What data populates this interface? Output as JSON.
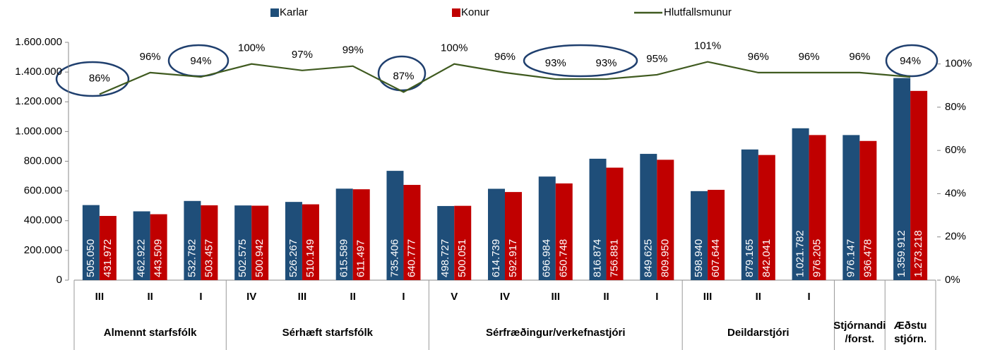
{
  "chart_data": {
    "type": "bar",
    "categories": [
      "III",
      "II",
      "I",
      "IV",
      "III",
      "II",
      "I",
      "V",
      "IV",
      "III",
      "II",
      "I",
      "III",
      "II",
      "I",
      null,
      null
    ],
    "groups": [
      {
        "name": "Almennt starfsfólk",
        "count": 3
      },
      {
        "name": "Sérhæft starfsfólk",
        "count": 4
      },
      {
        "name": "Sérfræðingur/verkefnastjóri",
        "count": 5
      },
      {
        "name": "Deildarstjóri",
        "count": 3
      },
      {
        "name": "Stjórnandi /forst.",
        "count": 1
      },
      {
        "name": "Æðstu stjórn.",
        "count": 1
      }
    ],
    "series": [
      {
        "name": "Karlar",
        "color": "#1f4e79",
        "type": "bar",
        "values": [
          505050,
          462922,
          532782,
          502575,
          526267,
          615589,
          735406,
          498727,
          614739,
          696984,
          816874,
          849625,
          598940,
          879165,
          1021782,
          976147,
          1359912
        ],
        "value_labels": [
          "505.050",
          "462.922",
          "532.782",
          "502.575",
          "526.267",
          "615.589",
          "735.406",
          "498.727",
          "614.739",
          "696.984",
          "816.874",
          "849.625",
          "598.940",
          "879.165",
          "1.021.782",
          "976.147",
          "1.359.912"
        ]
      },
      {
        "name": "Konur",
        "color": "#c00000",
        "type": "bar",
        "values": [
          431972,
          443509,
          503457,
          500942,
          510149,
          611497,
          640777,
          500051,
          592917,
          650748,
          756881,
          809950,
          607644,
          842041,
          976205,
          936478,
          1273218
        ],
        "value_labels": [
          "431.972",
          "443.509",
          "503.457",
          "500.942",
          "510.149",
          "611.497",
          "640.777",
          "500.051",
          "592.917",
          "650.748",
          "756.881",
          "809.950",
          "607.644",
          "842.041",
          "976.205",
          "936.478",
          "1.273.218"
        ]
      },
      {
        "name": "Hlutfallsmunur",
        "color": "#3f5a1f",
        "type": "line",
        "axis": "y2",
        "values": [
          86,
          96,
          94,
          100,
          97,
          99,
          87,
          100,
          96,
          93,
          93,
          95,
          101,
          96,
          96,
          96,
          94
        ],
        "value_labels": [
          "86%",
          "96%",
          "94%",
          "100%",
          "97%",
          "99%",
          "87%",
          "100%",
          "96%",
          "93%",
          "93%",
          "95%",
          "101%",
          "96%",
          "96%",
          "96%",
          "94%"
        ]
      }
    ],
    "ylim": [
      0,
      1600000
    ],
    "yticks": [
      0,
      {
        "value": 200000,
        "label": "200.000"
      },
      {
        "value": 400000,
        "label": "400.000"
      },
      {
        "value": 600000,
        "label": "600.000"
      },
      {
        "value": 800000,
        "label": "800.000"
      },
      {
        "value": 1000000,
        "label": "1.000.000"
      },
      {
        "value": 1200000,
        "label": "1.200.000"
      },
      {
        "value": 1400000,
        "label": "1.400.000"
      },
      {
        "value": 1600000,
        "label": "1.600.000"
      }
    ],
    "y2lim": [
      0,
      110
    ],
    "y2ticks": [
      {
        "value": 0,
        "label": "0%"
      },
      {
        "value": 20,
        "label": "20%"
      },
      {
        "value": 40,
        "label": "40%"
      },
      {
        "value": 60,
        "label": "60%"
      },
      {
        "value": 80,
        "label": "80%"
      },
      {
        "value": 100,
        "label": "100%"
      }
    ],
    "legend": "top",
    "grid": false
  }
}
